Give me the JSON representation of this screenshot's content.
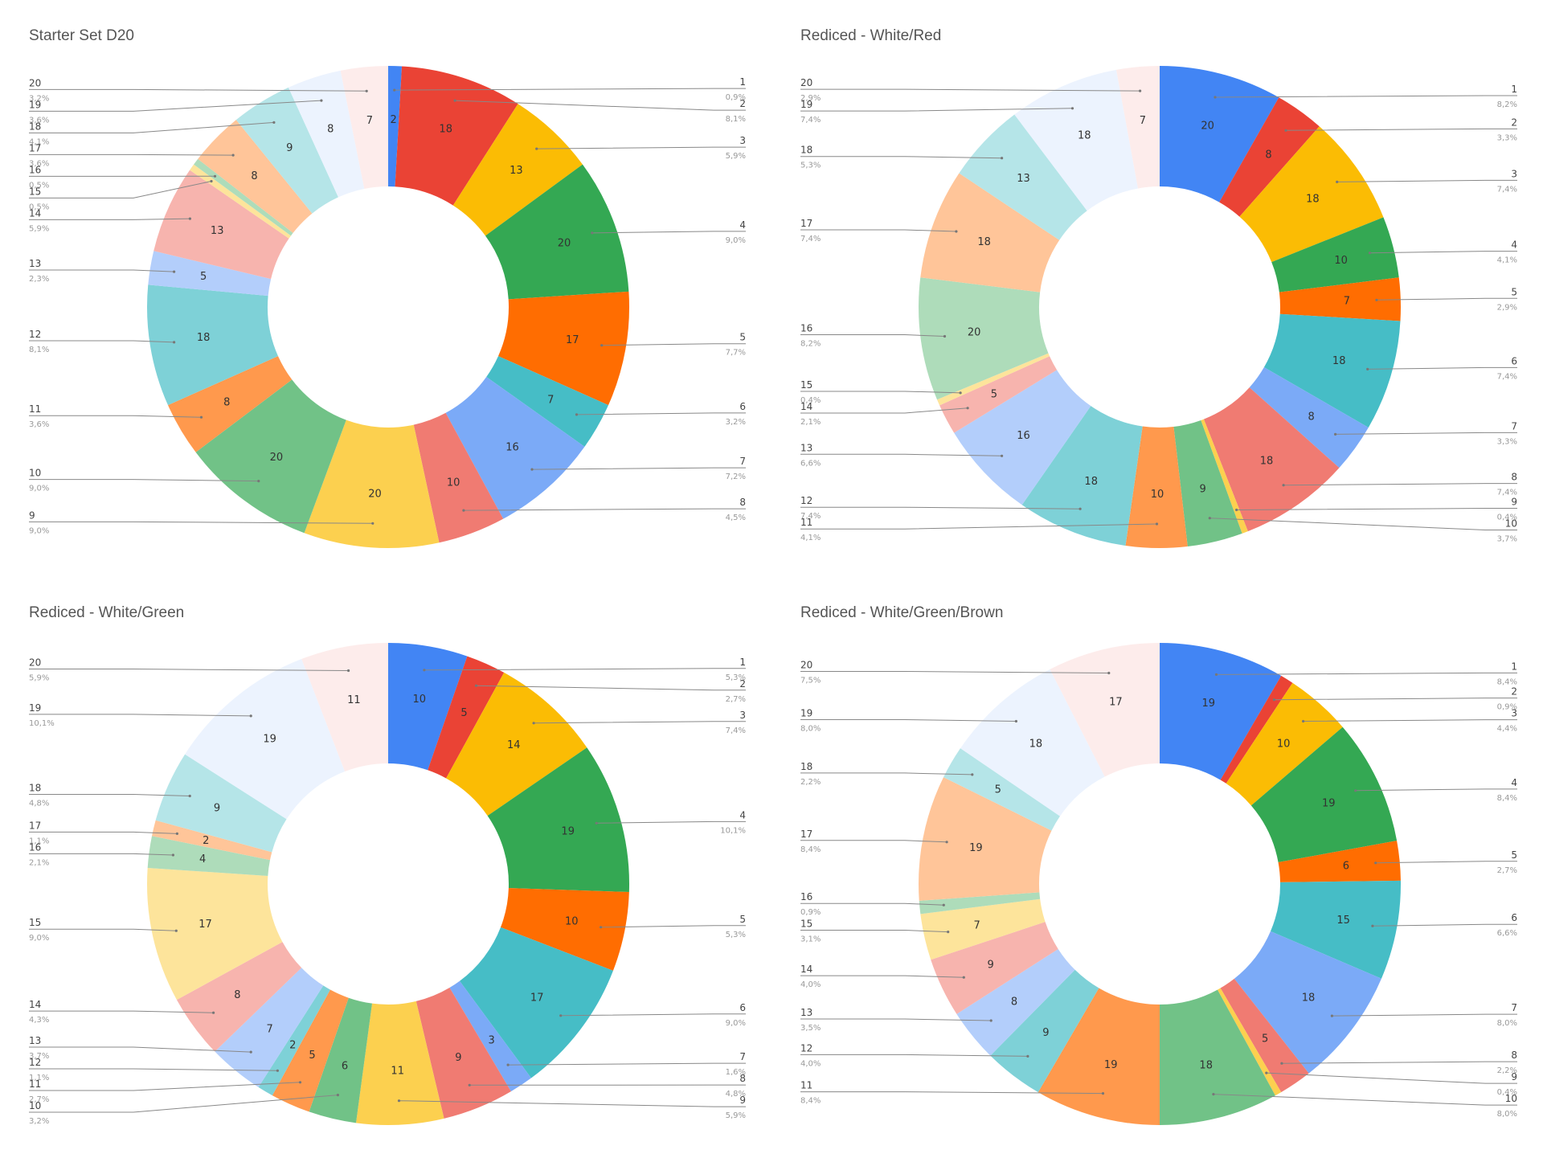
{
  "palette": [
    "#4285f4",
    "#ea4335",
    "#fbbc04",
    "#34a853",
    "#ff6d01",
    "#46bdc6",
    "#7baaf7",
    "#f07b72",
    "#fcd04f",
    "#71c287",
    "#ff994d",
    "#7ed1d7",
    "#b3cefb",
    "#f7b4ae",
    "#fde49b",
    "#aedcba",
    "#ffc599",
    "#b5e5e8",
    "#ecf3fe",
    "#fdeceb"
  ],
  "charts": [
    {
      "title": "Starter Set D20",
      "chart_data": {
        "type": "pie",
        "categories": [
          "1",
          "2",
          "3",
          "4",
          "5",
          "6",
          "7",
          "8",
          "9",
          "10",
          "11",
          "12",
          "13",
          "14",
          "15",
          "16",
          "17",
          "18",
          "19",
          "20"
        ],
        "values": [
          2,
          18,
          13,
          20,
          17,
          7,
          16,
          10,
          20,
          20,
          8,
          18,
          5,
          13,
          1,
          1,
          8,
          9,
          8,
          7
        ],
        "percent_labels": [
          "0,9%",
          "8,1%",
          "5,9%",
          "9,0%",
          "7,7%",
          "3,2%",
          "7,2%",
          "4,5%",
          "9,0%",
          "9,0%",
          "3,6%",
          "8,1%",
          "2,3%",
          "5,9%",
          "0,5%",
          "0,5%",
          "3,6%",
          "4,1%",
          "3,6%",
          "3,2%"
        ],
        "slice_labels": [
          "2",
          "18",
          "13",
          "20",
          "17",
          "7",
          "16",
          "10",
          "20",
          "20",
          "8",
          "18",
          "5",
          "13",
          "",
          "",
          "8",
          "9",
          "8",
          "7"
        ]
      }
    },
    {
      "title": "Rediced - White/Red",
      "chart_data": {
        "type": "pie",
        "categories": [
          "1",
          "2",
          "3",
          "4",
          "5",
          "6",
          "7",
          "8",
          "9",
          "10",
          "11",
          "12",
          "13",
          "14",
          "15",
          "16",
          "17",
          "18",
          "19",
          "20"
        ],
        "values": [
          20,
          8,
          18,
          10,
          7,
          18,
          8,
          18,
          1,
          9,
          10,
          18,
          16,
          5,
          1,
          20,
          18,
          13,
          18,
          7
        ],
        "percent_labels": [
          "8,2%",
          "3,3%",
          "7,4%",
          "4,1%",
          "2,9%",
          "7,4%",
          "3,3%",
          "7,4%",
          "0,4%",
          "3,7%",
          "4,1%",
          "7,4%",
          "6,6%",
          "2,1%",
          "0,4%",
          "8,2%",
          "7,4%",
          "5,3%",
          "7,4%",
          "2,9%"
        ],
        "slice_labels": [
          "20",
          "8",
          "18",
          "10",
          "7",
          "18",
          "8",
          "18",
          "",
          "9",
          "10",
          "18",
          "16",
          "5",
          "",
          "20",
          "18",
          "13",
          "18",
          "7"
        ]
      }
    },
    {
      "title": "Rediced - White/Green",
      "chart_data": {
        "type": "pie",
        "categories": [
          "1",
          "2",
          "3",
          "4",
          "5",
          "6",
          "7",
          "8",
          "9",
          "10",
          "11",
          "12",
          "13",
          "14",
          "15",
          "16",
          "17",
          "18",
          "19",
          "20"
        ],
        "values": [
          10,
          5,
          14,
          19,
          10,
          17,
          3,
          9,
          11,
          6,
          5,
          2,
          7,
          8,
          17,
          4,
          2,
          9,
          19,
          11
        ],
        "percent_labels": [
          "5,3%",
          "2,7%",
          "7,4%",
          "10,1%",
          "5,3%",
          "9,0%",
          "1,6%",
          "4,8%",
          "5,9%",
          "3,2%",
          "2,7%",
          "1,1%",
          "3,7%",
          "4,3%",
          "9,0%",
          "2,1%",
          "1,1%",
          "4,8%",
          "10,1%",
          "5,9%"
        ],
        "slice_labels": [
          "10",
          "5",
          "14",
          "19",
          "10",
          "17",
          "3",
          "9",
          "11",
          "6",
          "5",
          "2",
          "7",
          "8",
          "17",
          "4",
          "2",
          "9",
          "19",
          "11"
        ]
      }
    },
    {
      "title": "Rediced - White/Green/Brown",
      "chart_data": {
        "type": "pie",
        "categories": [
          "1",
          "2",
          "3",
          "4",
          "5",
          "6",
          "7",
          "8",
          "9",
          "10",
          "11",
          "12",
          "13",
          "14",
          "15",
          "16",
          "17",
          "18",
          "19",
          "20"
        ],
        "values": [
          19,
          2,
          10,
          19,
          6,
          15,
          18,
          5,
          1,
          18,
          19,
          9,
          8,
          9,
          7,
          2,
          19,
          5,
          18,
          17
        ],
        "percent_labels": [
          "8,4%",
          "0,9%",
          "4,4%",
          "8,4%",
          "2,7%",
          "6,6%",
          "8,0%",
          "2,2%",
          "0,4%",
          "8,0%",
          "8,4%",
          "4,0%",
          "3,5%",
          "4,0%",
          "3,1%",
          "0,9%",
          "8,4%",
          "2,2%",
          "8,0%",
          "7,5%"
        ],
        "slice_labels": [
          "19",
          "",
          "10",
          "19",
          "6",
          "15",
          "18",
          "5",
          "",
          "18",
          "19",
          "9",
          "8",
          "9",
          "7",
          "",
          "19",
          "5",
          "18",
          "17"
        ]
      }
    }
  ]
}
